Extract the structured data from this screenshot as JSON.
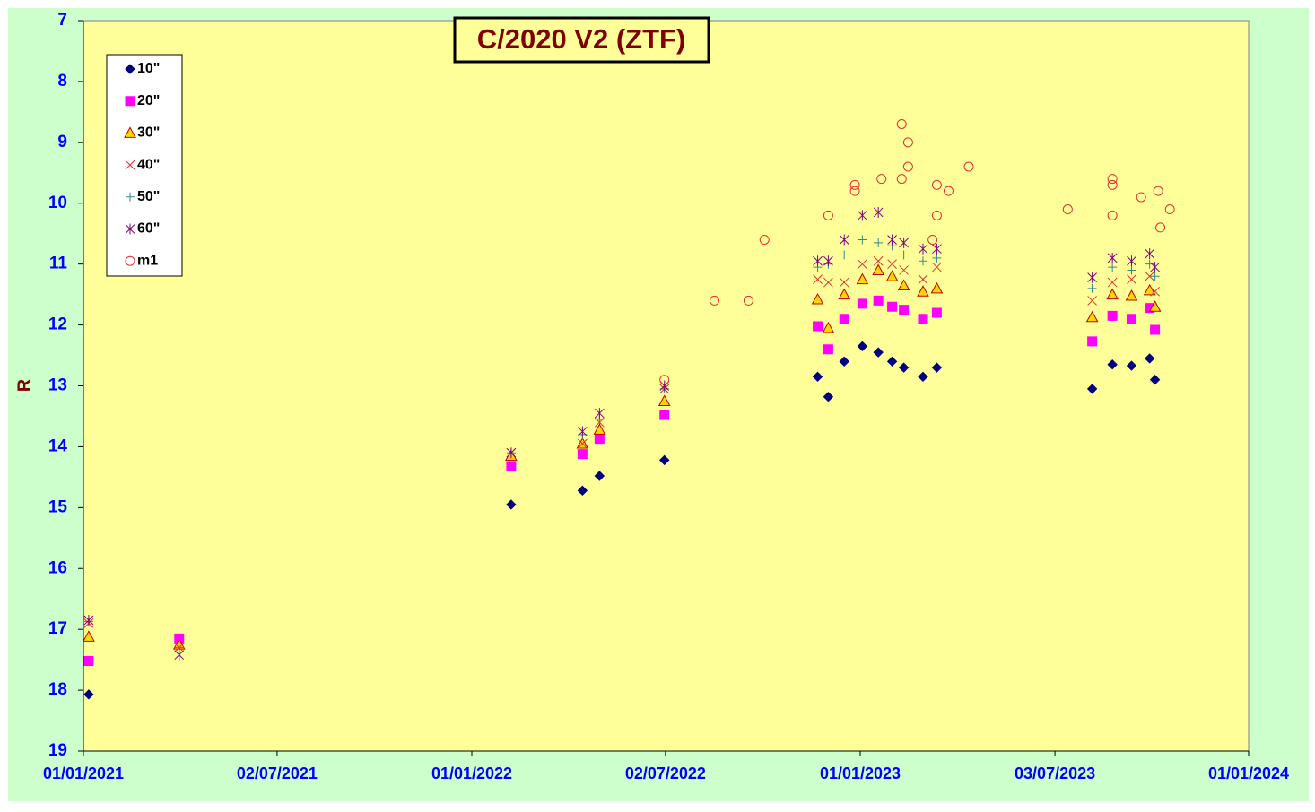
{
  "chart_data": {
    "type": "scatter",
    "title": "C/2020 V2 (ZTF)",
    "y_label": "R",
    "xlim": [
      "2021-01-01",
      "2024-01-01"
    ],
    "xticks": [
      {
        "value": "2021-01-01",
        "label": "01/01/2021"
      },
      {
        "value": "2021-07-02",
        "label": "02/07/2021"
      },
      {
        "value": "2022-01-01",
        "label": "01/01/2022"
      },
      {
        "value": "2022-07-02",
        "label": "02/07/2022"
      },
      {
        "value": "2023-01-01",
        "label": "01/01/2023"
      },
      {
        "value": "2023-07-03",
        "label": "03/07/2023"
      },
      {
        "value": "2024-01-01",
        "label": "01/01/2024"
      }
    ],
    "ylim": [
      7,
      19
    ],
    "y_inverted": true,
    "yticks": [
      7,
      8,
      9,
      10,
      11,
      12,
      13,
      14,
      15,
      16,
      17,
      18,
      19
    ],
    "legend": "top-left",
    "series": [
      {
        "name": "10\"",
        "color": "#000080",
        "marker": "diamond",
        "x": [
          "2021-01-06",
          "2022-02-07",
          "2022-04-15",
          "2022-05-01",
          "2022-07-01",
          "2022-11-22",
          "2022-12-02",
          "2022-12-17",
          "2023-01-03",
          "2023-01-18",
          "2023-01-31",
          "2023-02-11",
          "2023-03-01",
          "2023-03-14",
          "2023-08-07",
          "2023-08-26",
          "2023-09-13",
          "2023-09-30",
          "2023-10-05"
        ],
        "values": [
          18.07,
          14.95,
          14.72,
          14.48,
          14.22,
          12.85,
          13.18,
          12.6,
          12.35,
          12.45,
          12.6,
          12.7,
          12.85,
          12.7,
          13.05,
          12.65,
          12.67,
          12.55,
          12.9
        ]
      },
      {
        "name": "20\"",
        "color": "#ff00ff",
        "marker": "square",
        "x": [
          "2021-01-06",
          "2021-04-01",
          "2022-02-07",
          "2022-04-15",
          "2022-05-01",
          "2022-07-01",
          "2022-11-22",
          "2022-12-02",
          "2022-12-17",
          "2023-01-03",
          "2023-01-18",
          "2023-01-31",
          "2023-02-11",
          "2023-03-01",
          "2023-03-14",
          "2023-08-07",
          "2023-08-26",
          "2023-09-13",
          "2023-09-30",
          "2023-10-05"
        ],
        "values": [
          17.52,
          17.15,
          14.32,
          14.12,
          13.87,
          13.48,
          12.02,
          12.4,
          11.9,
          11.65,
          11.6,
          11.7,
          11.75,
          11.9,
          11.8,
          12.27,
          11.85,
          11.9,
          11.72,
          12.08
        ]
      },
      {
        "name": "30\"",
        "color": "#ffd700",
        "marker": "triangle",
        "x": [
          "2021-01-06",
          "2021-04-01",
          "2022-02-07",
          "2022-04-15",
          "2022-05-01",
          "2022-07-01",
          "2022-11-22",
          "2022-12-02",
          "2022-12-17",
          "2023-01-03",
          "2023-01-18",
          "2023-01-31",
          "2023-02-11",
          "2023-03-01",
          "2023-03-14",
          "2023-08-07",
          "2023-08-26",
          "2023-09-13",
          "2023-09-30",
          "2023-10-05"
        ],
        "values": [
          17.12,
          17.25,
          14.15,
          13.95,
          13.72,
          13.25,
          11.58,
          12.05,
          11.5,
          11.25,
          11.1,
          11.2,
          11.35,
          11.45,
          11.4,
          11.87,
          11.5,
          11.52,
          11.43,
          11.7
        ]
      },
      {
        "name": "40\"",
        "color": "#e03030",
        "marker": "x",
        "x": [
          "2021-01-06",
          "2021-04-01",
          "2022-02-07",
          "2022-04-15",
          "2022-05-01",
          "2022-07-01",
          "2022-11-22",
          "2022-12-02",
          "2022-12-17",
          "2023-01-03",
          "2023-01-18",
          "2023-01-31",
          "2023-02-11",
          "2023-03-01",
          "2023-03-14",
          "2023-08-07",
          "2023-08-26",
          "2023-09-13",
          "2023-09-30",
          "2023-10-05"
        ],
        "values": [
          16.9,
          17.3,
          14.1,
          13.95,
          13.6,
          13.05,
          11.25,
          11.3,
          11.3,
          11.0,
          10.95,
          11.0,
          11.1,
          11.25,
          11.05,
          11.6,
          11.3,
          11.25,
          11.2,
          11.45
        ]
      },
      {
        "name": "50\"",
        "color": "#2e8b8b",
        "marker": "plus",
        "x": [
          "2021-01-06",
          "2021-04-01",
          "2022-02-07",
          "2022-04-15",
          "2022-05-01",
          "2022-07-01",
          "2022-11-22",
          "2022-12-02",
          "2022-12-17",
          "2023-01-03",
          "2023-01-18",
          "2023-01-31",
          "2023-02-11",
          "2023-03-01",
          "2023-03-14",
          "2023-08-07",
          "2023-08-26",
          "2023-09-13",
          "2023-09-30",
          "2023-10-05"
        ],
        "values": [
          16.87,
          17.3,
          14.1,
          13.8,
          13.55,
          13.05,
          11.05,
          11.0,
          10.85,
          10.6,
          10.65,
          10.7,
          10.85,
          10.95,
          10.9,
          11.4,
          11.05,
          11.1,
          11.0,
          11.2
        ]
      },
      {
        "name": "60\"",
        "color": "#800080",
        "marker": "star",
        "x": [
          "2021-01-06",
          "2021-04-01",
          "2022-02-07",
          "2022-04-15",
          "2022-05-01",
          "2022-07-01",
          "2022-11-22",
          "2022-12-02",
          "2022-12-17",
          "2023-01-03",
          "2023-01-18",
          "2023-01-31",
          "2023-02-11",
          "2023-03-01",
          "2023-03-14",
          "2023-08-07",
          "2023-08-26",
          "2023-09-13",
          "2023-09-30",
          "2023-10-05"
        ],
        "values": [
          16.85,
          17.42,
          14.1,
          13.75,
          13.45,
          13.0,
          10.95,
          10.95,
          10.6,
          10.2,
          10.15,
          10.6,
          10.65,
          10.75,
          10.75,
          11.22,
          10.9,
          10.95,
          10.83,
          11.05
        ]
      },
      {
        "name": "m1",
        "color": "#e03030",
        "marker": "circle",
        "x": [
          "2022-07-01",
          "2022-08-17",
          "2022-09-18",
          "2022-10-03",
          "2022-12-02",
          "2022-12-27",
          "2022-12-27",
          "2023-01-21",
          "2023-02-09",
          "2023-02-09",
          "2023-02-15",
          "2023-02-15",
          "2023-03-10",
          "2023-03-14",
          "2023-03-14",
          "2023-03-25",
          "2023-04-13",
          "2023-07-15",
          "2023-08-26",
          "2023-08-26",
          "2023-08-26",
          "2023-09-22",
          "2023-10-08",
          "2023-10-10",
          "2023-10-19"
        ],
        "values": [
          12.9,
          11.6,
          11.6,
          10.6,
          10.2,
          9.7,
          9.8,
          9.6,
          8.7,
          9.6,
          9.0,
          9.4,
          10.6,
          10.2,
          9.7,
          9.8,
          9.4,
          10.1,
          9.6,
          9.7,
          10.2,
          9.9,
          9.8,
          10.4,
          10.1
        ]
      }
    ]
  }
}
